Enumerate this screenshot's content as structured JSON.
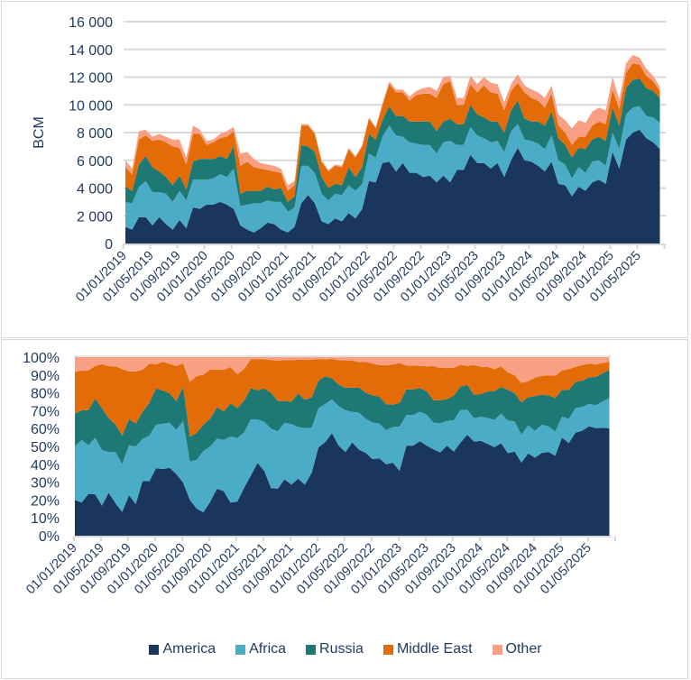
{
  "chart_data": [
    {
      "type": "area",
      "stacked": true,
      "title": "",
      "xlabel": "",
      "ylabel": "BCM",
      "ylim": [
        0,
        16000
      ],
      "yticks": [
        "0",
        "2 000",
        "4 000",
        "6 000",
        "8 000",
        "10 000",
        "12 000",
        "14 000",
        "16 000"
      ],
      "ytick_values": [
        0,
        2000,
        4000,
        6000,
        8000,
        10000,
        12000,
        14000,
        16000
      ],
      "grid": true,
      "x_start": "2019-01",
      "x_frequency": "monthly",
      "xtick_labels": [
        "01/01/2019",
        "01/05/2019",
        "01/09/2019",
        "01/01/2020",
        "01/05/2020",
        "01/09/2020",
        "01/01/2021",
        "01/05/2021",
        "01/09/2021",
        "01/01/2022",
        "01/05/2022",
        "01/09/2022",
        "01/01/2023",
        "01/05/2023",
        "01/09/2023",
        "01/01/2024",
        "01/05/2024",
        "01/09/2024",
        "01/01/2025",
        "01/05/2025"
      ],
      "series": [
        {
          "name": "America",
          "color": "#1a365d",
          "values": [
            1200,
            1000,
            1900,
            1900,
            1300,
            1900,
            1400,
            1000,
            1700,
            1100,
            2600,
            2500,
            2800,
            2800,
            3000,
            2800,
            2500,
            1300,
            1000,
            800,
            1100,
            1500,
            1400,
            1000,
            800,
            1200,
            2900,
            3500,
            2900,
            1600,
            1400,
            1800,
            1600,
            2200,
            1800,
            2500,
            4500,
            4400,
            5800,
            5900,
            5200,
            5800,
            5100,
            5100,
            4800,
            4900,
            4400,
            4900,
            4400,
            5300,
            5300,
            6400,
            5800,
            5800,
            5400,
            5800,
            4800,
            6000,
            6900,
            6000,
            5900,
            5600,
            5200,
            5900,
            4300,
            4200,
            3400,
            4100,
            3800,
            4400,
            4600,
            4300,
            6600,
            5400,
            7500,
            8000,
            8200,
            7600,
            7300,
            6800
          ]
        },
        {
          "name": "Africa",
          "color": "#4aacc6",
          "values": [
            1800,
            1900,
            2200,
            2600,
            2400,
            1800,
            2200,
            2000,
            2100,
            2000,
            2000,
            2100,
            1800,
            1900,
            2000,
            2000,
            2900,
            1400,
            1800,
            2100,
            1800,
            1600,
            1600,
            2000,
            1500,
            1400,
            2700,
            2100,
            2200,
            2000,
            1700,
            1800,
            1900,
            2000,
            2000,
            1800,
            2000,
            1800,
            1900,
            2600,
            2600,
            1900,
            2200,
            2100,
            2300,
            2200,
            2100,
            2400,
            3000,
            1800,
            1800,
            2000,
            2000,
            1800,
            1900,
            1600,
            1800,
            2100,
            1700,
            1500,
            1500,
            1600,
            1600,
            1900,
            1700,
            1500,
            1300,
            1400,
            1300,
            1500,
            1400,
            1300,
            1400,
            1400,
            1800,
            1800,
            1700,
            1600,
            1800,
            1900
          ]
        },
        {
          "name": "Russia",
          "color": "#1e7873",
          "values": [
            1100,
            900,
            1600,
            1800,
            1800,
            1500,
            1200,
            1200,
            1100,
            800,
            1300,
            1500,
            1500,
            1400,
            1300,
            1300,
            1600,
            900,
            1000,
            900,
            900,
            1000,
            900,
            1000,
            700,
            800,
            1500,
            1400,
            1500,
            1200,
            900,
            700,
            700,
            1300,
            1000,
            1200,
            1400,
            1300,
            1200,
            1400,
            1400,
            1500,
            1500,
            1600,
            1700,
            1700,
            1600,
            1500,
            1600,
            1500,
            1500,
            1600,
            1500,
            1500,
            1500,
            1400,
            1400,
            1500,
            1700,
            1500,
            1400,
            1600,
            1700,
            1700,
            1600,
            1400,
            1500,
            1400,
            1700,
            1600,
            1700,
            1800,
            1800,
            1700,
            1900,
            2000,
            2000,
            2000,
            1900,
            1800
          ]
        },
        {
          "name": "Middle East",
          "color": "#e36c09",
          "values": [
            1400,
            1200,
            1800,
            1500,
            1900,
            2300,
            2500,
            2800,
            2000,
            1800,
            2000,
            1800,
            1000,
            1200,
            1300,
            1600,
            1100,
            2000,
            2100,
            1700,
            1600,
            1200,
            1300,
            1100,
            800,
            800,
            1400,
            1500,
            1300,
            1100,
            1200,
            1300,
            1300,
            1300,
            1400,
            1500,
            1100,
            800,
            1100,
            1600,
            1700,
            1700,
            1500,
            1900,
            2000,
            2000,
            2400,
            2700,
            2700,
            1400,
            1400,
            1500,
            1600,
            2300,
            2100,
            2000,
            1600,
            1400,
            1300,
            1900,
            1700,
            1500,
            1300,
            1300,
            900,
            900,
            900,
            800,
            900,
            1000,
            1100,
            1200,
            1300,
            1200,
            1100,
            1200,
            1000,
            900,
            700,
            500
          ]
        },
        {
          "name": "Other",
          "color": "#f9a084",
          "values": [
            500,
            400,
            600,
            400,
            300,
            400,
            400,
            500,
            600,
            500,
            600,
            300,
            300,
            200,
            300,
            400,
            300,
            900,
            700,
            600,
            400,
            400,
            400,
            300,
            400,
            300,
            100,
            100,
            100,
            100,
            100,
            100,
            100,
            100,
            100,
            100,
            100,
            100,
            100,
            200,
            200,
            200,
            300,
            300,
            400,
            500,
            500,
            500,
            400,
            500,
            500,
            600,
            600,
            600,
            700,
            700,
            600,
            500,
            600,
            500,
            600,
            600,
            700,
            600,
            800,
            900,
            1200,
            1200,
            1000,
            1000,
            1000,
            1000,
            900,
            700,
            700,
            600,
            500,
            500,
            400,
            300
          ]
        }
      ]
    },
    {
      "type": "area",
      "stacked": true,
      "normalized": true,
      "title": "",
      "xlabel": "",
      "ylabel": "",
      "ylim": [
        0,
        100
      ],
      "yticks": [
        "0%",
        "10%",
        "20%",
        "30%",
        "40%",
        "50%",
        "60%",
        "70%",
        "80%",
        "90%",
        "100%"
      ],
      "grid": false,
      "x_start": "2019-01",
      "x_frequency": "monthly",
      "xtick_labels": [
        "01/01/2019",
        "01/05/2019",
        "01/09/2019",
        "01/01/2020",
        "01/05/2020",
        "01/09/2020",
        "01/01/2021",
        "01/05/2021",
        "01/09/2021",
        "01/01/2022",
        "01/05/2022",
        "01/09/2022",
        "01/01/2023",
        "01/05/2023",
        "01/09/2023",
        "01/01/2024",
        "01/05/2024",
        "01/09/2024",
        "01/01/2025",
        "01/05/2025"
      ],
      "series_source": "same as first chart, shown as percent share of monthly total",
      "legend": [
        "America",
        "Africa",
        "Russia",
        "Middle East",
        "Other"
      ],
      "legend_position": "bottom"
    }
  ],
  "legend": {
    "items": [
      {
        "label": "America",
        "color": "#1a365d"
      },
      {
        "label": "Africa",
        "color": "#4aacc6"
      },
      {
        "label": "Russia",
        "color": "#1e7873"
      },
      {
        "label": "Middle East",
        "color": "#e36c09"
      },
      {
        "label": "Other",
        "color": "#f9a084"
      }
    ]
  }
}
